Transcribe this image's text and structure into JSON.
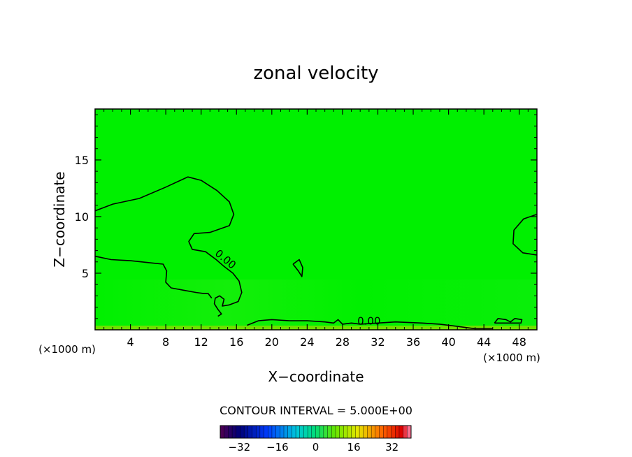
{
  "chart_data": {
    "type": "heatmap",
    "title": "zonal velocity",
    "xlabel": "X−coordinate",
    "ylabel": "Z−coordinate",
    "x_unit_label": "(×1000 m)",
    "y_unit_label": "(×1000 m)",
    "xlim": [
      0,
      50
    ],
    "ylim": [
      0,
      19.5
    ],
    "x_ticks": [
      4,
      8,
      12,
      16,
      20,
      24,
      28,
      32,
      36,
      40,
      44,
      48
    ],
    "y_ticks": [
      5,
      10,
      15
    ],
    "contour_label": "0.00",
    "contour_interval_text": "CONTOUR INTERVAL = 5.000E+00",
    "colorbar": {
      "min": -40,
      "max": 40,
      "ticks": [
        -32,
        -16,
        0,
        16,
        32
      ],
      "tick_labels": [
        "−32",
        "−16",
        "0",
        "16",
        "32"
      ]
    },
    "background_color": "#00f000",
    "contours": [
      {
        "name": "zero-contour-upper-left",
        "points": [
          [
            0,
            10.5
          ],
          [
            2,
            11.1
          ],
          [
            5,
            11.6
          ],
          [
            8,
            12.6
          ],
          [
            10.5,
            13.5
          ],
          [
            12,
            13.2
          ],
          [
            13.8,
            12.3
          ],
          [
            15.2,
            11.3
          ],
          [
            15.7,
            10.2
          ],
          [
            15.2,
            9.2
          ],
          [
            13,
            8.6
          ],
          [
            11.2,
            8.5
          ],
          [
            10.6,
            7.8
          ],
          [
            11,
            7.1
          ],
          [
            12.5,
            6.9
          ],
          [
            13.7,
            6.2
          ],
          [
            14.6,
            5.6
          ],
          [
            15.6,
            5.0
          ],
          [
            16.3,
            4.3
          ],
          [
            16.6,
            3.3
          ],
          [
            16.2,
            2.5
          ],
          [
            15.2,
            2.2
          ],
          [
            14.4,
            2.1
          ],
          [
            14.6,
            2.7
          ],
          [
            14.1,
            3.0
          ],
          [
            13.6,
            2.8
          ],
          [
            13.5,
            2.3
          ],
          [
            13.9,
            1.8
          ],
          [
            14.3,
            1.4
          ],
          [
            13.9,
            1.2
          ]
        ]
      },
      {
        "name": "zero-contour-lower-left",
        "points": [
          [
            0,
            6.5
          ],
          [
            1.8,
            6.2
          ],
          [
            4,
            6.1
          ],
          [
            6.5,
            5.9
          ],
          [
            7.7,
            5.8
          ],
          [
            8.1,
            5.2
          ],
          [
            8,
            4.2
          ],
          [
            8.6,
            3.7
          ],
          [
            10,
            3.5
          ],
          [
            11.4,
            3.3
          ],
          [
            12.3,
            3.2
          ],
          [
            12.8,
            3.2
          ],
          [
            13.2,
            2.8
          ]
        ]
      },
      {
        "name": "zero-contour-small-loop",
        "points": [
          [
            22.4,
            5.8
          ],
          [
            23.1,
            6.2
          ],
          [
            23.5,
            5.5
          ],
          [
            23.4,
            4.7
          ],
          [
            23.0,
            5.2
          ],
          [
            22.4,
            5.8
          ]
        ]
      },
      {
        "name": "zero-contour-right-loop",
        "points": [
          [
            50,
            10.2
          ],
          [
            48.5,
            9.8
          ],
          [
            47.4,
            8.8
          ],
          [
            47.3,
            7.6
          ],
          [
            48.4,
            6.8
          ],
          [
            50,
            6.6
          ]
        ]
      },
      {
        "name": "zero-contour-surface",
        "points": [
          [
            17.2,
            0.4
          ],
          [
            18.5,
            0.8
          ],
          [
            20,
            0.9
          ],
          [
            22,
            0.8
          ],
          [
            24,
            0.8
          ],
          [
            26,
            0.7
          ],
          [
            27,
            0.6
          ],
          [
            27.5,
            0.9
          ],
          [
            28,
            0.5
          ],
          [
            29,
            0.6
          ],
          [
            30,
            0.5
          ],
          [
            32,
            0.6
          ],
          [
            34,
            0.7
          ],
          [
            37,
            0.6
          ],
          [
            39,
            0.5
          ],
          [
            41,
            0.3
          ],
          [
            43,
            0.1
          ],
          [
            45,
            0.1
          ]
        ]
      },
      {
        "name": "zero-contour-right-small",
        "points": [
          [
            45.2,
            0.6
          ],
          [
            45.6,
            1.0
          ],
          [
            46.5,
            0.9
          ],
          [
            47,
            0.7
          ],
          [
            47.5,
            1.0
          ],
          [
            48.3,
            0.9
          ],
          [
            48.2,
            0.6
          ],
          [
            47.3,
            0.6
          ],
          [
            46.2,
            0.6
          ],
          [
            45.2,
            0.6
          ]
        ]
      }
    ]
  }
}
